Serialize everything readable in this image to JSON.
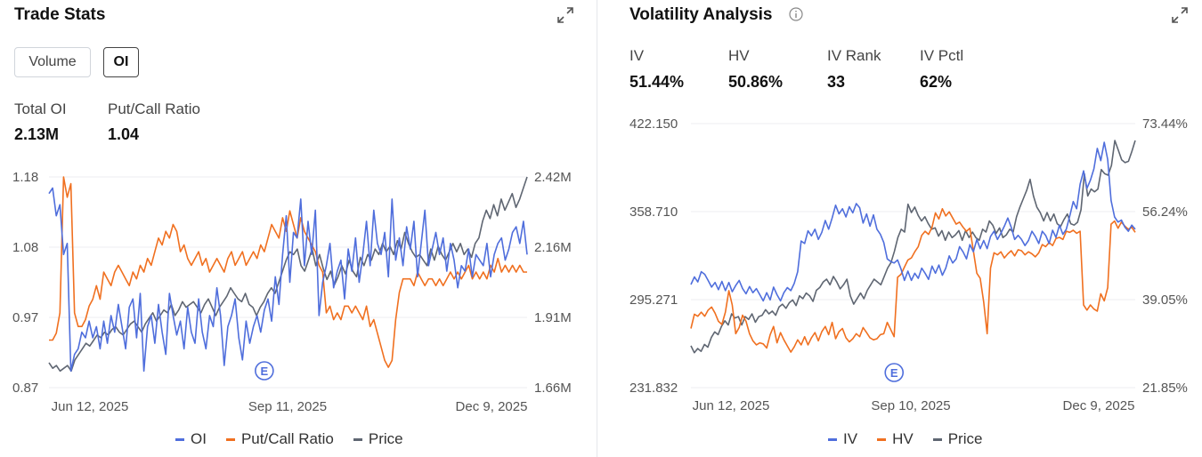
{
  "colors": {
    "oi": "#4f6edc",
    "ratio": "#f07020",
    "price": "#5f6672",
    "iv": "#4f6edc",
    "hv": "#f07020",
    "grid": "#eceef1",
    "axis_text": "#555"
  },
  "trade": {
    "title": "Trade Stats",
    "toggles": [
      "Volume",
      "OI"
    ],
    "active_toggle": "OI",
    "stats": [
      {
        "label": "Total OI",
        "value": "2.13M"
      },
      {
        "label": "Put/Call Ratio",
        "value": "1.04"
      }
    ],
    "legend": [
      "OI",
      "Put/Call Ratio",
      "Price"
    ],
    "earnings_marker": "E"
  },
  "vol": {
    "title": "Volatility Analysis",
    "stats": [
      {
        "label": "IV",
        "value": "51.44%"
      },
      {
        "label": "HV",
        "value": "50.86%"
      },
      {
        "label": "IV Rank",
        "value": "33"
      },
      {
        "label": "IV Pctl",
        "value": "62%"
      }
    ],
    "legend": [
      "IV",
      "HV",
      "Price"
    ],
    "earnings_marker": "E"
  },
  "chart_data": [
    {
      "type": "line",
      "x_ticks": [
        "Jun 12, 2025",
        "Sep 11, 2025",
        "Dec 9, 2025"
      ],
      "left_axis": {
        "ticks": [
          "1.18",
          "1.08",
          "0.97",
          "0.87"
        ],
        "ylim": [
          0.87,
          1.18
        ]
      },
      "right_axis": {
        "ticks": [
          "2.42M",
          "2.16M",
          "1.91M",
          "1.66M"
        ],
        "ylim": [
          1660000,
          2420000
        ]
      },
      "grid": true,
      "legend_position": "bottom",
      "earnings_index": 59,
      "series": [
        {
          "name": "OI",
          "axis": "right",
          "values": [
            2.36,
            2.38,
            2.28,
            2.32,
            2.14,
            2.18,
            1.72,
            1.78,
            1.8,
            1.86,
            1.84,
            1.9,
            1.84,
            1.88,
            1.8,
            1.9,
            1.82,
            1.92,
            1.86,
            1.96,
            1.88,
            1.8,
            1.95,
            1.98,
            1.84,
            2.0,
            1.72,
            1.88,
            1.92,
            1.82,
            1.96,
            1.86,
            1.78,
            2.0,
            1.92,
            1.85,
            1.9,
            1.8,
            1.95,
            1.86,
            1.82,
            1.98,
            1.86,
            1.8,
            1.92,
            1.88,
            2.02,
            1.92,
            1.74,
            1.88,
            1.92,
            1.98,
            1.84,
            1.76,
            1.9,
            1.82,
            1.88,
            1.92,
            1.86,
            1.94,
            1.98,
            1.9,
            2.06,
            1.96,
            2.14,
            2.28,
            2.04,
            2.22,
            2.2,
            2.34,
            2.1,
            2.26,
            2.14,
            2.3,
            1.92,
            2.04,
            2.1,
            2.18,
            2.02,
            2.08,
            2.12,
            1.98,
            2.16,
            2.08,
            2.2,
            2.04,
            2.14,
            2.26,
            2.1,
            2.3,
            2.18,
            2.14,
            2.22,
            2.06,
            2.34,
            2.12,
            2.2,
            2.1,
            2.24,
            2.16,
            2.26,
            2.06,
            2.18,
            2.3,
            2.1,
            2.16,
            2.22,
            2.14,
            2.2,
            2.08,
            2.18,
            2.12,
            2.02,
            2.1,
            2.08,
            2.16,
            2.06,
            2.14,
            2.12,
            2.1,
            2.18,
            2.06,
            2.14,
            2.18,
            2.2,
            2.12,
            2.16,
            2.22,
            2.24,
            2.18,
            2.26,
            2.14
          ]
        },
        {
          "name": "Put/Call Ratio",
          "axis": "left",
          "values": [
            0.94,
            0.94,
            0.95,
            0.98,
            1.18,
            1.15,
            1.17,
            0.98,
            0.96,
            0.96,
            0.97,
            0.99,
            1.0,
            1.02,
            1.0,
            1.04,
            1.03,
            1.02,
            1.04,
            1.05,
            1.04,
            1.03,
            1.02,
            1.04,
            1.03,
            1.05,
            1.04,
            1.06,
            1.05,
            1.07,
            1.09,
            1.08,
            1.1,
            1.09,
            1.11,
            1.1,
            1.07,
            1.08,
            1.06,
            1.05,
            1.06,
            1.07,
            1.05,
            1.06,
            1.04,
            1.05,
            1.06,
            1.05,
            1.04,
            1.06,
            1.07,
            1.05,
            1.06,
            1.07,
            1.05,
            1.06,
            1.07,
            1.06,
            1.08,
            1.07,
            1.09,
            1.11,
            1.1,
            1.09,
            1.12,
            1.1,
            1.13,
            1.11,
            1.09,
            1.12,
            1.1,
            1.09,
            1.08,
            1.07,
            1.05,
            1.04,
            0.98,
            0.99,
            0.97,
            0.98,
            0.97,
            0.99,
            0.99,
            0.98,
            0.99,
            0.98,
            0.97,
            0.99,
            0.96,
            0.97,
            0.95,
            0.93,
            0.91,
            0.9,
            0.91,
            0.97,
            1.01,
            1.03,
            1.03,
            1.03,
            1.02,
            1.04,
            1.03,
            1.02,
            1.03,
            1.03,
            1.02,
            1.03,
            1.02,
            1.03,
            1.04,
            1.03,
            1.04,
            1.03,
            1.04,
            1.05,
            1.03,
            1.04,
            1.03,
            1.04,
            1.03,
            1.05,
            1.04,
            1.06,
            1.04,
            1.05,
            1.04,
            1.05,
            1.04,
            1.05,
            1.04,
            1.04
          ]
        },
        {
          "name": "Price",
          "axis": "right",
          "values": [
            1.75,
            1.73,
            1.74,
            1.72,
            1.73,
            1.74,
            1.72,
            1.76,
            1.78,
            1.8,
            1.82,
            1.81,
            1.83,
            1.85,
            1.84,
            1.86,
            1.85,
            1.87,
            1.88,
            1.86,
            1.85,
            1.87,
            1.89,
            1.9,
            1.88,
            1.86,
            1.89,
            1.91,
            1.93,
            1.9,
            1.92,
            1.94,
            1.93,
            1.96,
            1.92,
            1.94,
            1.97,
            1.95,
            1.96,
            1.97,
            1.95,
            1.93,
            1.96,
            1.98,
            1.95,
            1.92,
            1.95,
            1.97,
            1.99,
            2.02,
            2.0,
            1.98,
            1.97,
            2.0,
            1.96,
            1.95,
            1.92,
            1.95,
            1.97,
            2.0,
            2.02,
            2.0,
            2.04,
            2.08,
            2.12,
            2.15,
            2.14,
            2.16,
            2.1,
            2.08,
            2.12,
            2.16,
            2.1,
            2.14,
            2.09,
            2.05,
            2.08,
            2.03,
            2.06,
            2.1,
            2.07,
            2.12,
            2.08,
            2.06,
            2.13,
            2.1,
            2.14,
            2.12,
            2.16,
            2.14,
            2.18,
            2.15,
            2.17,
            2.14,
            2.19,
            2.16,
            2.22,
            2.18,
            2.15,
            2.13,
            2.14,
            2.12,
            2.1,
            2.16,
            2.12,
            2.17,
            2.14,
            2.12,
            2.15,
            2.18,
            2.15,
            2.18,
            2.14,
            2.16,
            2.13,
            2.18,
            2.2,
            2.26,
            2.3,
            2.27,
            2.32,
            2.28,
            2.34,
            2.3,
            2.33,
            2.36,
            2.31,
            2.34,
            2.38,
            2.42
          ]
        }
      ]
    },
    {
      "type": "line",
      "x_ticks": [
        "Jun 12, 2025",
        "Sep 10, 2025",
        "Dec 9, 2025"
      ],
      "left_axis": {
        "ticks": [
          "422.150",
          "358.710",
          "295.271",
          "231.832"
        ],
        "ylim": [
          231.832,
          422.15
        ]
      },
      "right_axis": {
        "ticks": [
          "73.44%",
          "56.24%",
          "39.05%",
          "21.85%"
        ],
        "ylim": [
          21.85,
          73.44
        ]
      },
      "grid": true,
      "legend_position": "bottom",
      "earnings_index": 59,
      "series": [
        {
          "name": "IV",
          "axis": "right",
          "values": [
            42.0,
            43.5,
            42.5,
            44.5,
            44.0,
            42.8,
            41.5,
            42.4,
            41.0,
            42.6,
            40.8,
            42.4,
            40.6,
            41.8,
            42.8,
            41.2,
            40.2,
            41.6,
            40.4,
            41.2,
            40.0,
            38.8,
            40.4,
            39.0,
            41.5,
            40.0,
            38.8,
            40.4,
            41.4,
            40.8,
            42.2,
            44.5,
            50.5,
            50.0,
            52.5,
            51.5,
            52.8,
            50.8,
            52.2,
            54.5,
            52.8,
            55.0,
            57.5,
            55.8,
            56.8,
            55.2,
            57.2,
            56.0,
            57.8,
            57.0,
            54.0,
            55.8,
            53.4,
            55.6,
            52.8,
            51.8,
            50.2,
            47.0,
            46.5,
            46.2,
            46.8,
            45.0,
            42.8,
            44.6,
            42.8,
            44.2,
            43.2,
            45.2,
            44.2,
            43.0,
            45.6,
            44.2,
            45.8,
            43.8,
            45.2,
            47.6,
            46.2,
            47.0,
            49.4,
            48.4,
            47.0,
            49.8,
            48.4,
            50.8,
            49.0,
            50.6,
            49.0,
            51.4,
            52.4,
            50.8,
            52.0,
            53.4,
            55.0,
            53.2,
            50.8,
            51.6,
            50.8,
            49.6,
            50.6,
            52.4,
            51.4,
            50.0,
            52.4,
            51.6,
            50.0,
            52.6,
            51.2,
            53.6,
            51.8,
            52.8,
            55.4,
            58.2,
            56.8,
            61.6,
            64.2,
            60.8,
            62.4,
            64.6,
            68.6,
            66.2,
            69.8,
            66.4,
            58.4,
            55.2,
            54.2,
            54.6,
            53.2,
            52.4,
            53.6,
            52.8
          ]
        },
        {
          "name": "HV",
          "axis": "right",
          "values": [
            33.4,
            36.2,
            35.8,
            36.6,
            35.8,
            37.0,
            37.6,
            36.4,
            34.8,
            34.2,
            36.6,
            40.8,
            38.0,
            32.4,
            33.6,
            36.0,
            34.8,
            32.4,
            31.0,
            30.2,
            30.6,
            30.4,
            29.6,
            32.2,
            33.8,
            30.6,
            32.6,
            31.2,
            30.0,
            28.8,
            29.8,
            31.2,
            30.2,
            31.8,
            30.2,
            31.6,
            32.6,
            31.0,
            32.8,
            33.8,
            32.2,
            34.6,
            31.4,
            32.8,
            33.4,
            31.6,
            30.8,
            31.4,
            32.4,
            31.8,
            33.6,
            32.6,
            31.6,
            31.2,
            31.4,
            32.2,
            32.4,
            34.6,
            33.2,
            31.8,
            43.4,
            44.0,
            45.4,
            46.8,
            47.2,
            48.4,
            49.4,
            51.6,
            52.4,
            51.8,
            53.2,
            56.0,
            54.8,
            56.8,
            55.4,
            56.2,
            55.0,
            53.8,
            54.2,
            53.2,
            52.4,
            53.0,
            48.6,
            44.2,
            43.2,
            38.6,
            32.4,
            45.2,
            48.2,
            47.8,
            48.4,
            47.2,
            48.0,
            48.6,
            47.6,
            48.8,
            48.6,
            47.8,
            48.4,
            48.0,
            47.4,
            48.2,
            49.8,
            49.4,
            50.2,
            49.6,
            51.0,
            51.2,
            50.8,
            52.4,
            52.2,
            52.6,
            52.0,
            52.4,
            38.0,
            37.0,
            38.0,
            37.2,
            36.8,
            40.2,
            38.8,
            41.4,
            53.8,
            54.4,
            53.0,
            54.2,
            53.4,
            52.8,
            53.2,
            52.2
          ]
        },
        {
          "name": "Price",
          "axis": "left",
          "values": [
            262.0,
            257.0,
            260.0,
            258.0,
            263.0,
            261.0,
            268.0,
            272.0,
            270.0,
            276.0,
            280.0,
            277.0,
            285.0,
            282.0,
            283.0,
            277.0,
            283.0,
            281.0,
            285.0,
            279.0,
            283.0,
            284.0,
            288.0,
            285.0,
            287.0,
            284.0,
            290.0,
            292.0,
            289.0,
            293.0,
            295.0,
            291.0,
            298.0,
            296.0,
            300.0,
            298.0,
            294.0,
            302.0,
            304.0,
            308.0,
            310.0,
            306.0,
            312.0,
            308.0,
            303.0,
            306.0,
            310.0,
            298.0,
            292.0,
            296.0,
            300.0,
            296.0,
            302.0,
            306.0,
            310.0,
            308.0,
            306.0,
            312.0,
            318.0,
            322.0,
            330.0,
            340.0,
            346.0,
            344.0,
            364.0,
            358.0,
            362.0,
            356.0,
            352.0,
            355.0,
            350.0,
            346.0,
            347.0,
            341.0,
            345.0,
            338.0,
            344.0,
            340.0,
            342.0,
            345.0,
            338.0,
            345.0,
            340.0,
            344.0,
            340.0,
            338.0,
            346.0,
            344.0,
            352.0,
            349.0,
            343.0,
            347.0,
            340.0,
            342.0,
            346.0,
            344.0,
            355.0,
            362.0,
            368.0,
            374.0,
            382.0,
            370.0,
            362.0,
            358.0,
            352.0,
            358.0,
            352.0,
            357.0,
            350.0,
            348.0,
            353.0,
            357.0,
            350.0,
            349.0,
            351.0,
            360.0,
            386.0,
            370.0,
            375.0,
            373.0,
            375.0,
            389.0,
            386.0,
            385.0,
            392.0,
            410.0,
            403.0,
            396.0,
            394.0,
            395.0,
            402.0,
            410.0
          ]
        }
      ]
    }
  ]
}
